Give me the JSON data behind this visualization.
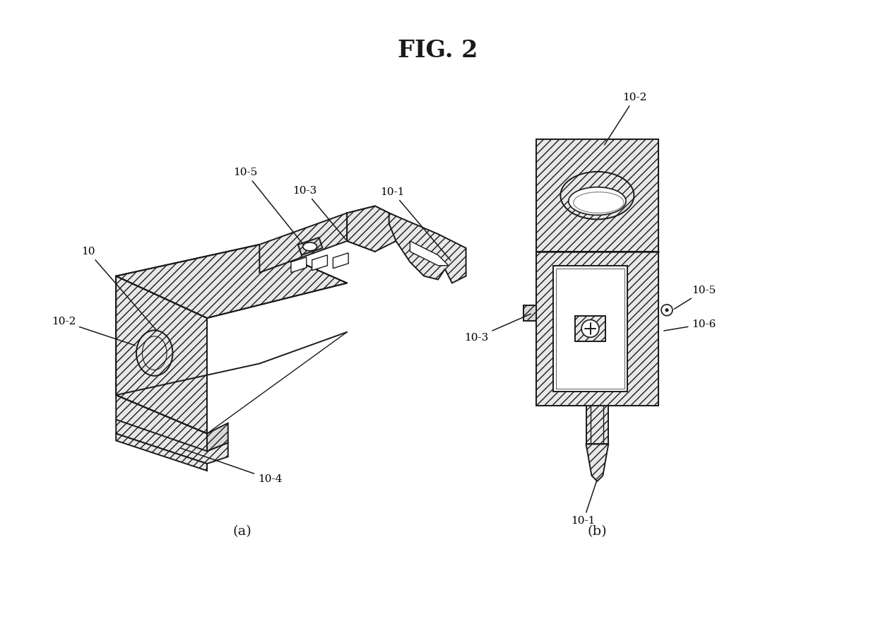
{
  "title": "FIG. 2",
  "title_fontsize": 24,
  "title_fontweight": "bold",
  "bg_color": "#ffffff",
  "line_color": "#1a1a1a",
  "label_fontsize": 11,
  "sub_label_a": "(a)",
  "sub_label_b": "(b)",
  "hatch_style": "///",
  "face_color_light": "#e8e8e8",
  "face_color_mid": "#d8d8d8",
  "face_color_white": "#ffffff"
}
